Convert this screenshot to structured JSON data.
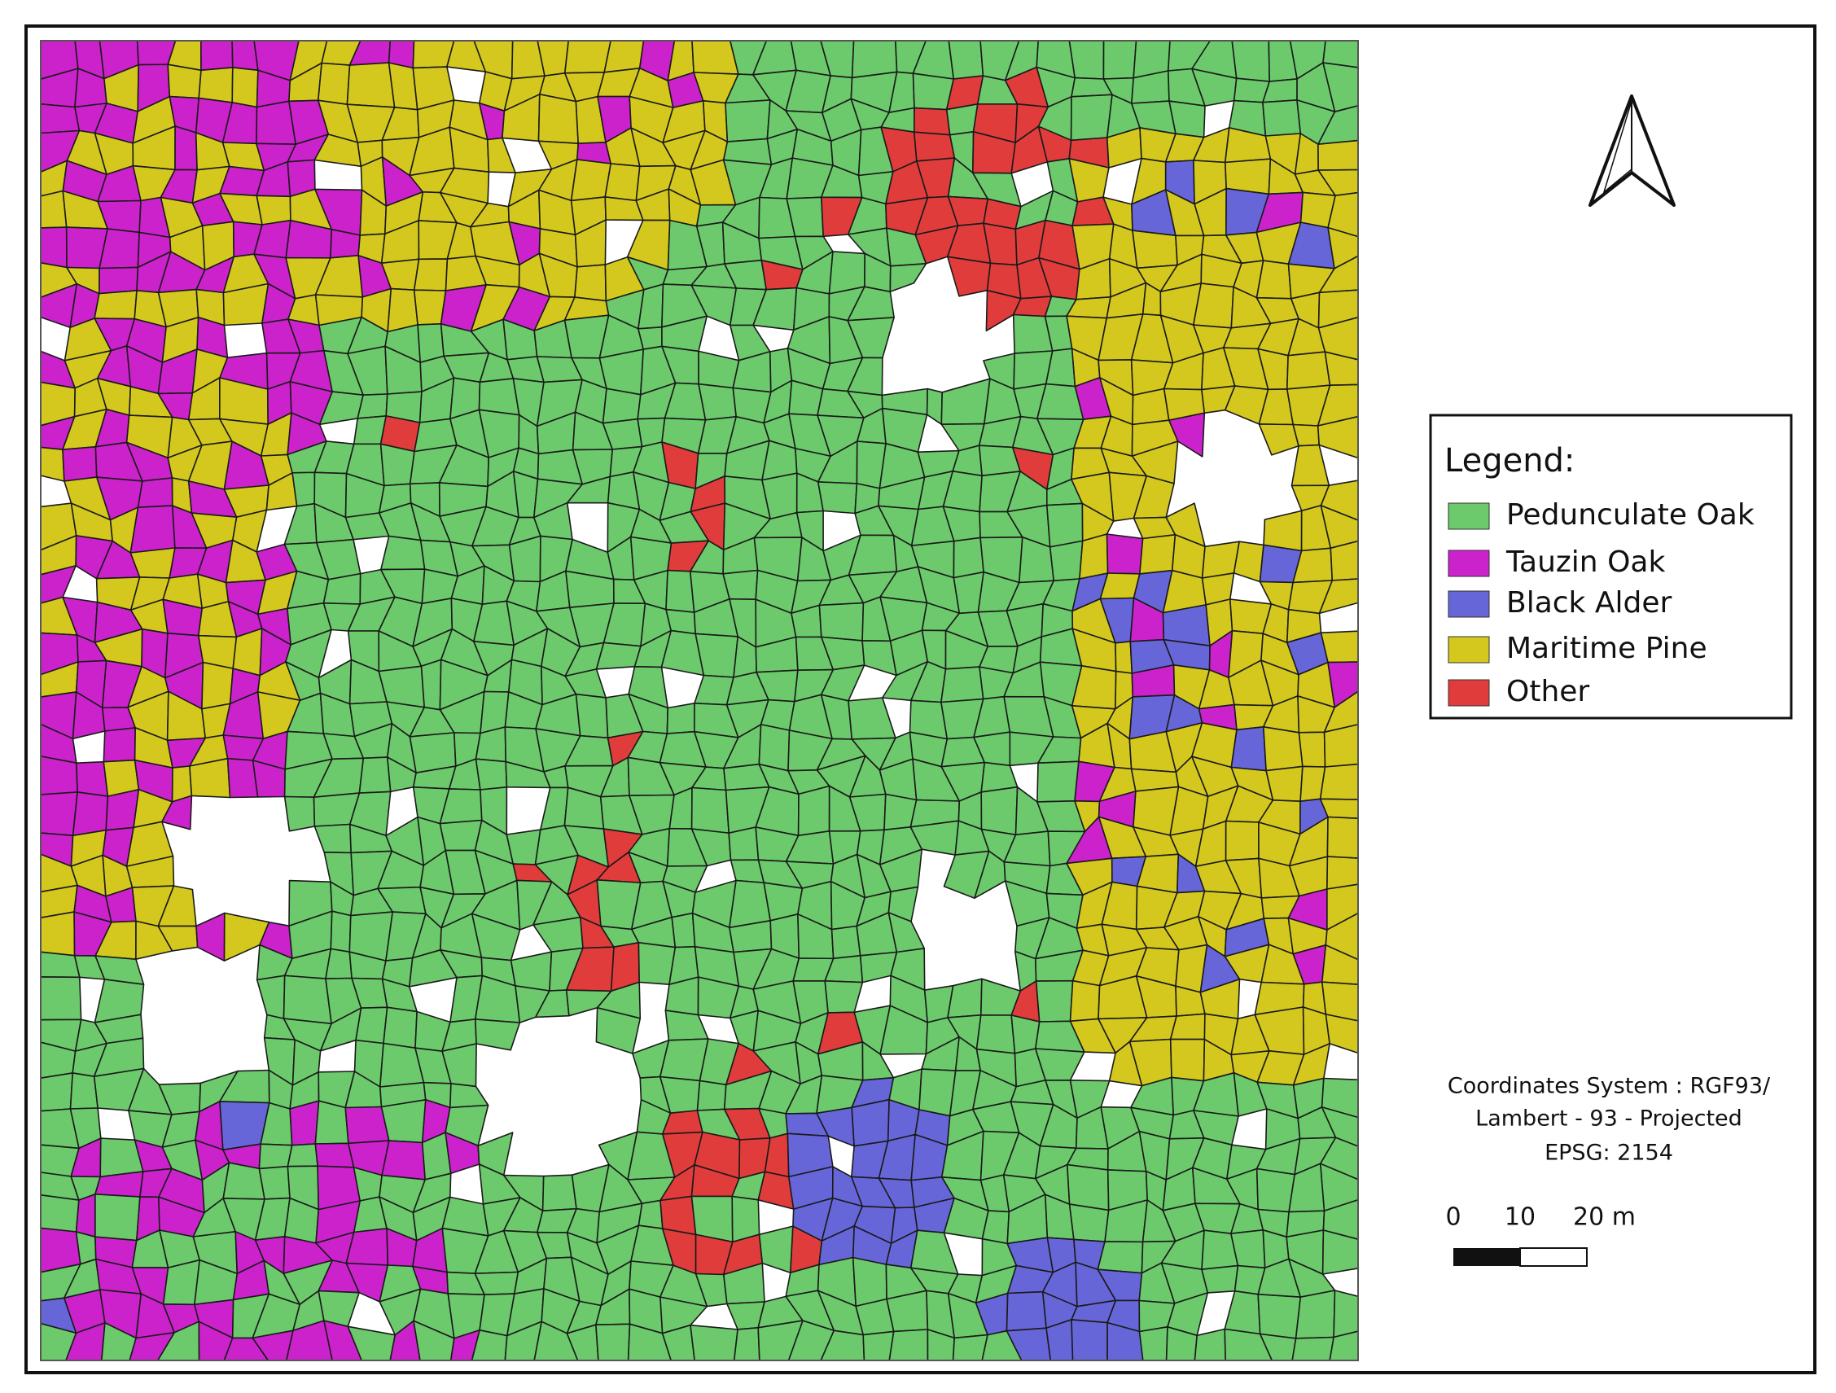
{
  "legend": {
    "title": "Legend:",
    "items": [
      {
        "label": "Pedunculate Oak",
        "color": "#6cc96c"
      },
      {
        "label": "Tauzin Oak",
        "color": "#cc22cc"
      },
      {
        "label": "Black Alder",
        "color": "#6666d9"
      },
      {
        "label": "Maritime Pine",
        "color": "#d4c81e"
      },
      {
        "label": "Other",
        "color": "#e03c3c"
      }
    ]
  },
  "coordinate_system": {
    "lines": [
      "Coordinates System : RGF93/",
      "Lambert - 93 - Projected",
      "EPSG: 2154"
    ]
  },
  "scale_bar": {
    "labels": [
      "0",
      "10",
      "20 m"
    ]
  }
}
